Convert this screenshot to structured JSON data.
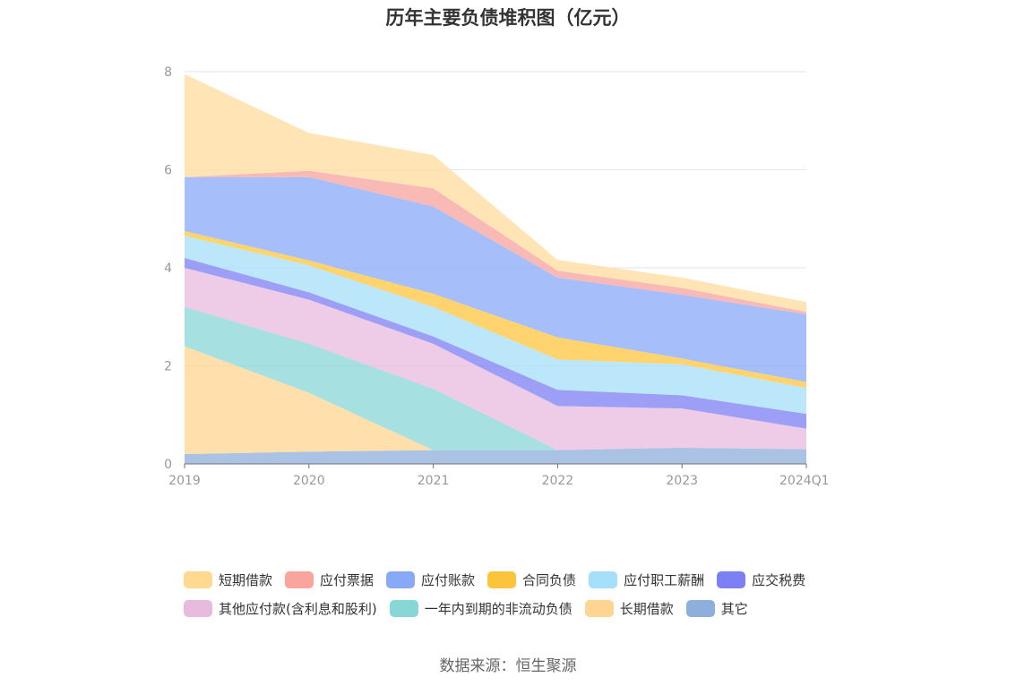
{
  "chart_data": {
    "type": "area",
    "stacked": true,
    "title": "历年主要负债堆积图（亿元）",
    "x": [
      "2019",
      "2020",
      "2021",
      "2022",
      "2023",
      "2024Q1"
    ],
    "yticks": [
      "0",
      "2",
      "4",
      "6",
      "8"
    ],
    "ylim": [
      0,
      8
    ],
    "grid": true,
    "legend_position": "bottom",
    "series": [
      {
        "name": "其它",
        "color": "#8eaedb",
        "values": [
          0.2,
          0.25,
          0.28,
          0.28,
          0.33,
          0.3
        ]
      },
      {
        "name": "长期借款",
        "color": "#ffd591",
        "values": [
          2.2,
          1.2,
          0.0,
          0.0,
          0.0,
          0.0
        ]
      },
      {
        "name": "一年内到期的非流动负债",
        "color": "#88d6d6",
        "values": [
          0.8,
          1.0,
          1.25,
          0.0,
          0.0,
          0.0
        ]
      },
      {
        "name": "其他应付款(含利息和股利)",
        "color": "#e8bade",
        "values": [
          0.8,
          0.9,
          0.92,
          0.9,
          0.8,
          0.42
        ]
      },
      {
        "name": "应交税费",
        "color": "#7b7ff2",
        "values": [
          0.2,
          0.15,
          0.15,
          0.33,
          0.27,
          0.3
        ]
      },
      {
        "name": "应付职工薪酬",
        "color": "#a5dff9",
        "values": [
          0.45,
          0.55,
          0.6,
          0.62,
          0.63,
          0.53
        ]
      },
      {
        "name": "合同负债",
        "color": "#ffc53d",
        "values": [
          0.1,
          0.1,
          0.27,
          0.45,
          0.12,
          0.12
        ]
      },
      {
        "name": "应付账款",
        "color": "#88a8f8",
        "values": [
          1.1,
          1.7,
          1.78,
          1.22,
          1.3,
          1.38
        ]
      },
      {
        "name": "应付票据",
        "color": "#f7a39e",
        "values": [
          0.0,
          0.13,
          0.37,
          0.14,
          0.14,
          0.05
        ]
      },
      {
        "name": "短期借款",
        "color": "#ffdc9e",
        "values": [
          2.1,
          0.77,
          0.68,
          0.22,
          0.21,
          0.2
        ]
      }
    ]
  },
  "legend": {
    "rows": [
      [
        {
          "label": "短期借款",
          "color": "#ffd98f"
        },
        {
          "label": "应付票据",
          "color": "#f9a59d"
        },
        {
          "label": "应付账款",
          "color": "#88a8f8"
        },
        {
          "label": "合同负债",
          "color": "#fcc43a"
        },
        {
          "label": "应付职工薪酬",
          "color": "#a6dffa"
        },
        {
          "label": "应交税费",
          "color": "#7b80f2"
        }
      ],
      [
        {
          "label": "其他应付款(含利息和股利)",
          "color": "#e8bade"
        },
        {
          "label": "一年内到期的非流动负债",
          "color": "#87d7d7"
        },
        {
          "label": "长期借款",
          "color": "#ffd591"
        },
        {
          "label": "其它",
          "color": "#8eaedb"
        }
      ]
    ]
  },
  "source": "数据来源：恒生聚源"
}
